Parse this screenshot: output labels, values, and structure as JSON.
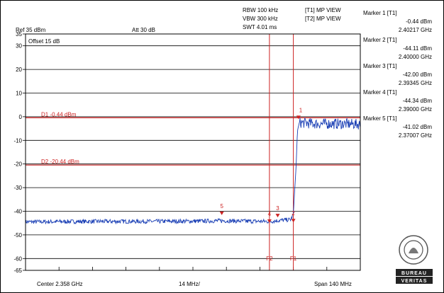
{
  "header": {
    "ref": "Ref 35 dBm",
    "att": "Att 30 dB",
    "rbw": "RBW 100 kHz",
    "vbw": "VBW 300 kHz",
    "swt": "SWT 4.01 ms",
    "trace1": "[T1] MP VIEW",
    "trace2": "[T2] MP VIEW",
    "offset": "Offset 15 dB"
  },
  "markers": [
    {
      "title": "Marker 1 [T1]",
      "level": "-0.44 dBm",
      "freq": "2.40217 GHz"
    },
    {
      "title": "Marker 2 [T1]",
      "level": "-44.11 dBm",
      "freq": "2.40000 GHz"
    },
    {
      "title": "Marker 3 [T1]",
      "level": "-42.00 dBm",
      "freq": "2.39345 GHz"
    },
    {
      "title": "Marker 4 [T1]",
      "level": "-44.34 dBm",
      "freq": "2.39000 GHz"
    },
    {
      "title": "Marker 5 [T1]",
      "level": "-41.02 dBm",
      "freq": "2.37007 GHz"
    }
  ],
  "footer": {
    "center": "Center 2.358 GHz",
    "div": "14 MHz/",
    "span": "Span 140 MHz"
  },
  "logo": {
    "text1": "BUREAU",
    "text2": "VERITAS",
    "year": "1828"
  },
  "chart_data": {
    "type": "line",
    "title": "",
    "xlabel": "",
    "ylabel": "",
    "x_range_ghz": [
      2.288,
      2.428
    ],
    "ylim": [
      -65,
      35
    ],
    "y_ticks": [
      35,
      30,
      20,
      10,
      0,
      -10,
      -20,
      -30,
      -40,
      -50,
      -60,
      -65
    ],
    "display_lines": [
      {
        "label": "D1 -0.44 dBm",
        "level": -0.44
      },
      {
        "label": "D2 -20.44 dBm",
        "level": -20.44
      }
    ],
    "vertical_lines": [
      {
        "label": "F2",
        "freq_ghz": 2.39
      },
      {
        "label": "F1",
        "freq_ghz": 2.4
      }
    ],
    "marker_points": [
      {
        "label": "1",
        "freq_ghz": 2.40217,
        "level": -0.44
      },
      {
        "label": "2",
        "freq_ghz": 2.4,
        "level": -44.11
      },
      {
        "label": "3",
        "freq_ghz": 2.39345,
        "level": -42.0
      },
      {
        "label": "4",
        "freq_ghz": 2.39,
        "level": -44.34
      },
      {
        "label": "5",
        "freq_ghz": 2.37007,
        "level": -41.02
      }
    ],
    "trace": {
      "name": "",
      "color": "#1a3fb5",
      "points": [
        [
          2.288,
          -44.5
        ],
        [
          2.3,
          -44.4
        ],
        [
          2.32,
          -44.3
        ],
        [
          2.34,
          -44.3
        ],
        [
          2.36,
          -44.2
        ],
        [
          2.37,
          -44.0
        ],
        [
          2.38,
          -44.2
        ],
        [
          2.39,
          -44.3
        ],
        [
          2.395,
          -43.8
        ],
        [
          2.399,
          -43.5
        ],
        [
          2.4,
          -41.0
        ],
        [
          2.4012,
          -20.0
        ],
        [
          2.4017,
          -6.0
        ],
        [
          2.4025,
          -2.5
        ],
        [
          2.41,
          -3.0
        ],
        [
          2.42,
          -3.0
        ],
        [
          2.428,
          -3.2
        ]
      ]
    },
    "line_color": "#cc2222",
    "grid": true
  }
}
